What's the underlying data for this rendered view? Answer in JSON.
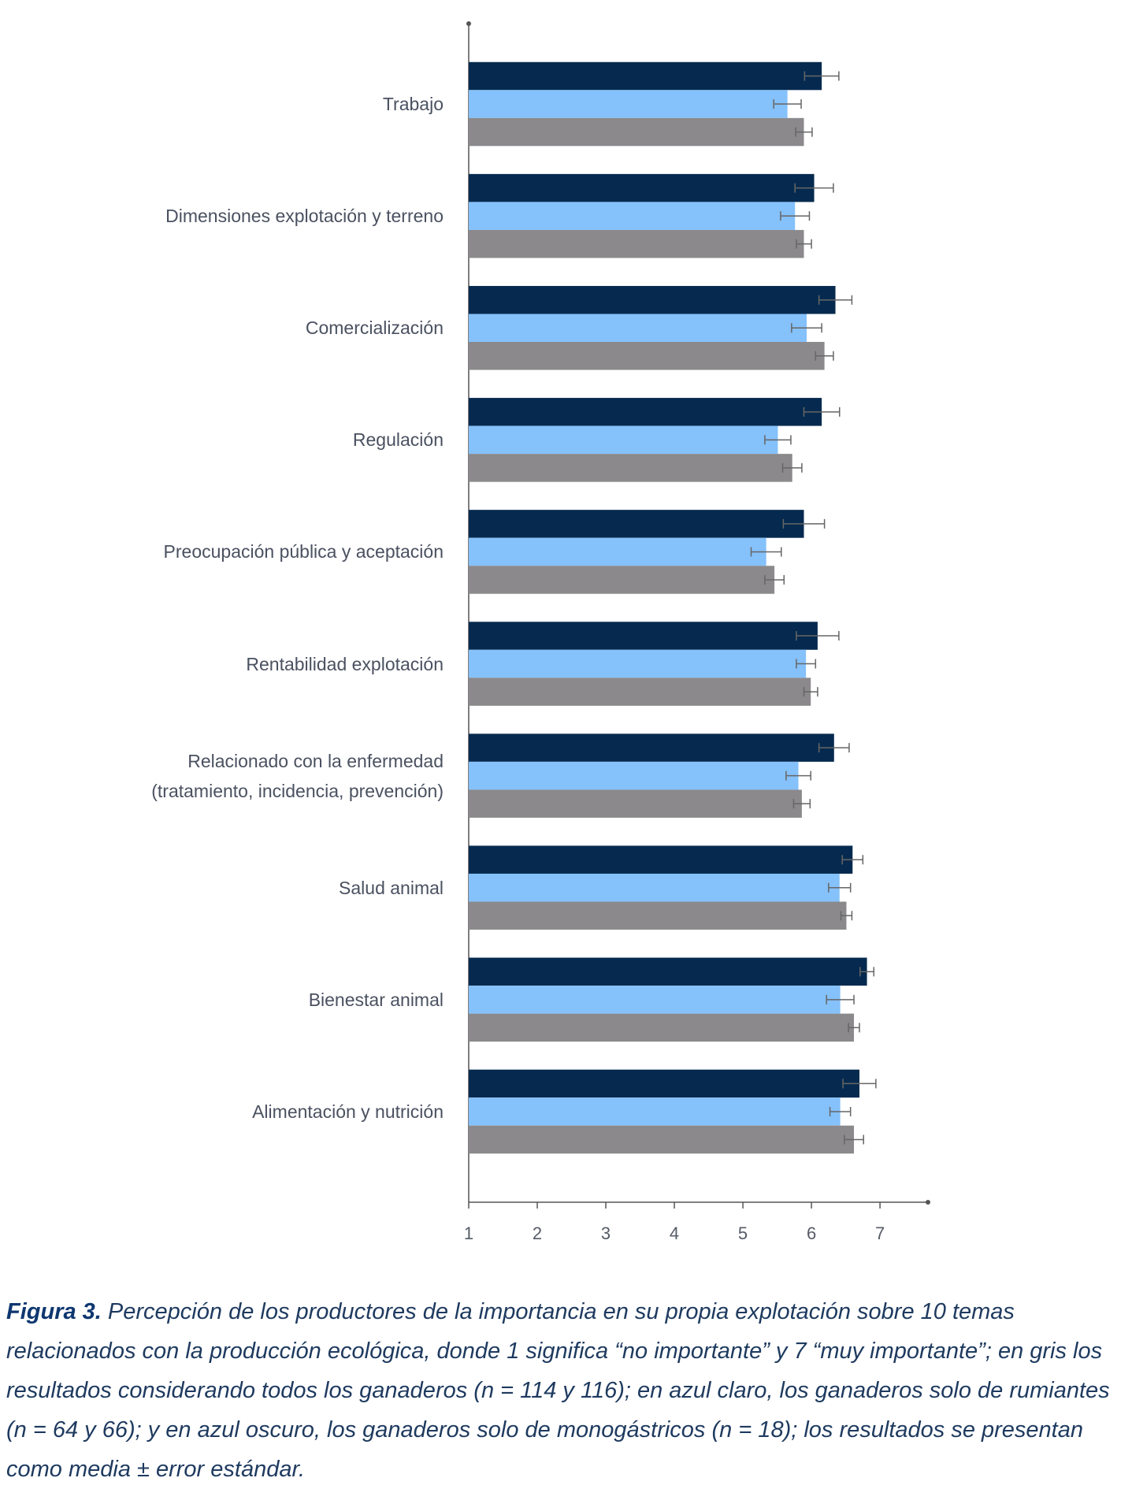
{
  "chart_data": {
    "type": "hbar",
    "categories": [
      "Trabajo",
      "Dimensiones explotación y terreno",
      "Comercialización",
      "Regulación",
      "Preocupación pública y aceptación",
      "Rentabilidad explotación",
      "Relacionado con la enfermedad\n(tratamiento, incidencia, prevención)",
      "Salud animal",
      "Bienestar animal",
      "Alimentación y nutrición"
    ],
    "series": [
      {
        "color": "#062a4f",
        "values": [
          6.15,
          6.04,
          6.35,
          6.15,
          5.89,
          6.09,
          6.33,
          6.6,
          6.81,
          6.7
        ],
        "errors": [
          0.25,
          0.28,
          0.24,
          0.26,
          0.3,
          0.31,
          0.22,
          0.15,
          0.1,
          0.24
        ]
      },
      {
        "color": "#85c1fa",
        "values": [
          5.65,
          5.76,
          5.93,
          5.51,
          5.34,
          5.92,
          5.81,
          6.41,
          6.42,
          6.42
        ],
        "errors": [
          0.2,
          0.21,
          0.22,
          0.19,
          0.22,
          0.14,
          0.18,
          0.16,
          0.2,
          0.15
        ]
      },
      {
        "color": "#8b898c",
        "values": [
          5.89,
          5.89,
          6.19,
          5.72,
          5.46,
          5.99,
          5.86,
          6.51,
          6.62,
          6.62
        ],
        "errors": [
          0.12,
          0.11,
          0.13,
          0.14,
          0.14,
          0.1,
          0.12,
          0.08,
          0.08,
          0.14
        ]
      }
    ],
    "xlim": [
      1,
      7.7
    ],
    "xticks": [
      1,
      2,
      3,
      4,
      5,
      6,
      7
    ],
    "grid": false
  },
  "caption": {
    "label": "Figura 3.",
    "text": "Percepción de los productores de la importancia en su propia explotación sobre 10 temas relacionados con la producción ecológica, donde 1 significa “no importante” y 7 “muy importante”; en gris los resultados considerando todos los ganaderos (n = 114 y 116); en azul claro, los ganaderos solo de rumiantes (n = 64 y 66); y en azul oscuro, los ganaderos solo de monogástricos (n = 18); los resultados se presentan como media ± error estándar."
  }
}
